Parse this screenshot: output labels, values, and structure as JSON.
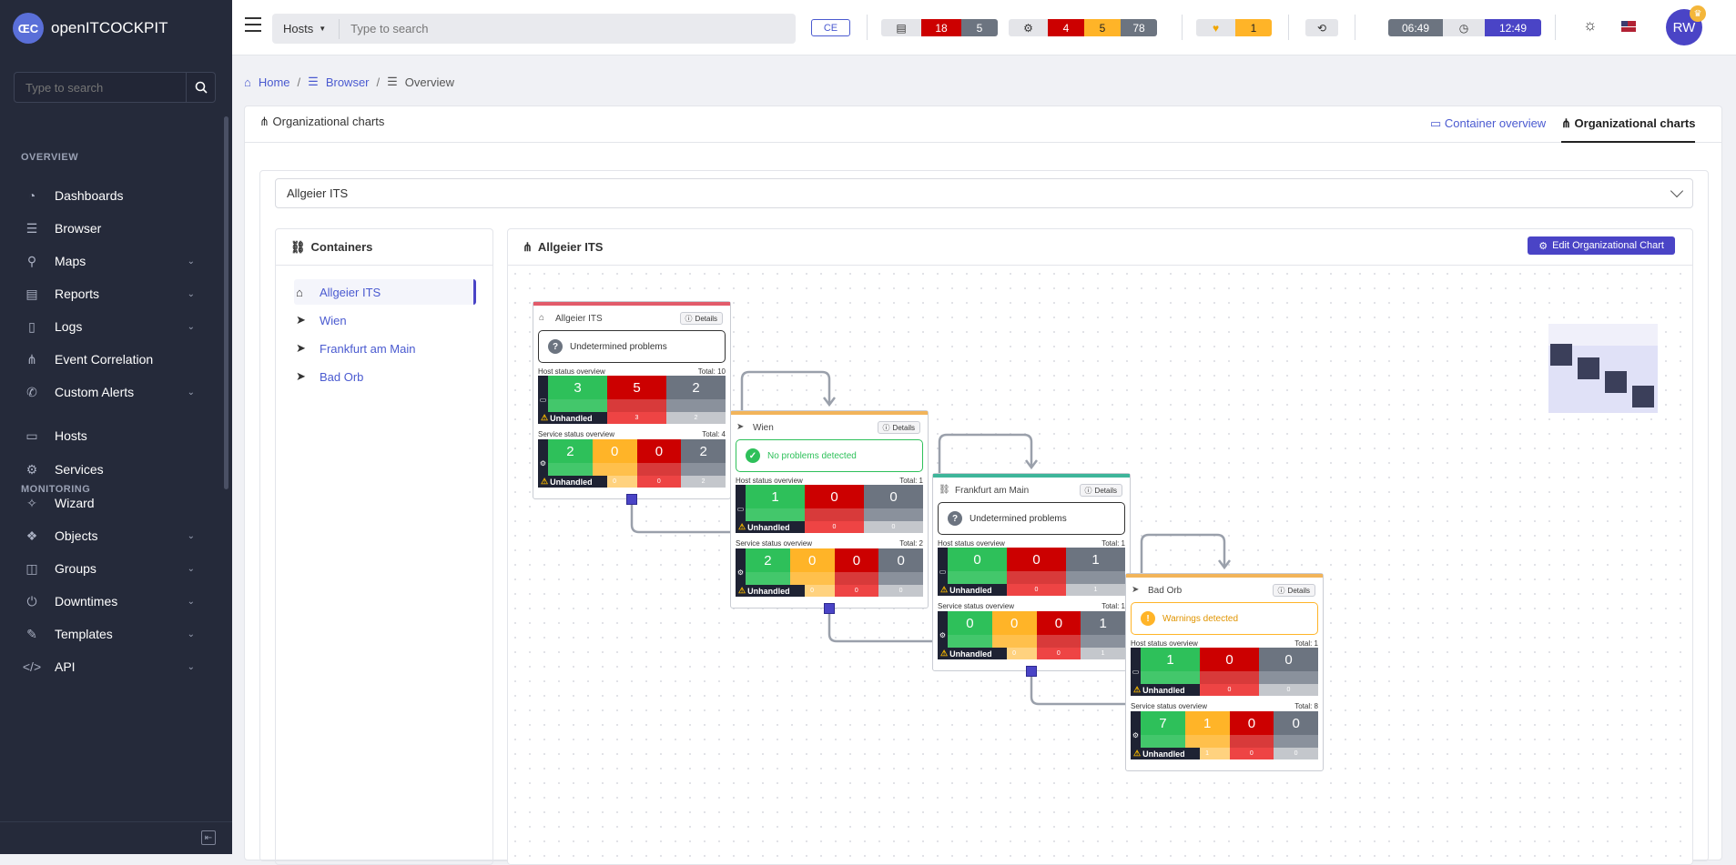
{
  "brand": {
    "name": "openITCOCKPIT",
    "logo_text": "ŒC"
  },
  "sidebar": {
    "search_placeholder": "Type to search",
    "sections": [
      {
        "label": "OVERVIEW"
      },
      {
        "label": "MONITORING"
      }
    ],
    "items": [
      {
        "label": "Dashboards",
        "icon": "dashboard-icon",
        "expandable": false
      },
      {
        "label": "Browser",
        "icon": "list-icon",
        "expandable": false
      },
      {
        "label": "Maps",
        "icon": "map-pin-icon",
        "expandable": true
      },
      {
        "label": "Reports",
        "icon": "report-icon",
        "expandable": true
      },
      {
        "label": "Logs",
        "icon": "file-icon",
        "expandable": true
      },
      {
        "label": "Event Correlation",
        "icon": "hierarchy-icon",
        "expandable": false
      },
      {
        "label": "Custom Alerts",
        "icon": "megaphone-icon",
        "expandable": true
      },
      {
        "label": "Hosts",
        "icon": "desktop-icon",
        "expandable": false
      },
      {
        "label": "Services",
        "icon": "gears-icon",
        "expandable": false
      },
      {
        "label": "Wizard",
        "icon": "wand-icon",
        "expandable": false
      },
      {
        "label": "Objects",
        "icon": "cubes-icon",
        "expandable": true
      },
      {
        "label": "Groups",
        "icon": "group-icon",
        "expandable": true
      },
      {
        "label": "Downtimes",
        "icon": "power-icon",
        "expandable": true
      },
      {
        "label": "Templates",
        "icon": "edit-icon",
        "expandable": true
      },
      {
        "label": "API",
        "icon": "code-icon",
        "expandable": true
      }
    ]
  },
  "topbar": {
    "search_scope": "Hosts",
    "search_placeholder": "Type to search",
    "edition": "CE",
    "host_counts": {
      "down": "18",
      "unreachable": "5"
    },
    "service_counts": {
      "critical": "4",
      "warning": "5",
      "unknown": "78"
    },
    "alerts": {
      "count": "1"
    },
    "time_left": "06:49",
    "time_right": "12:49",
    "user_initials": "RW",
    "colors": {
      "red": "#cc0000",
      "gray": "#6c7480",
      "orange": "#ffb428",
      "purple": "#4a44c6"
    }
  },
  "breadcrumb": {
    "home": "Home",
    "browser": "Browser",
    "current": "Overview"
  },
  "panel": {
    "title": "Organizational charts",
    "tab_container_overview": "Container overview",
    "tab_org_charts": "Organizational charts",
    "select_value": "Allgeier ITS"
  },
  "containers": {
    "title": "Containers",
    "items": [
      {
        "label": "Allgeier ITS",
        "icon": "home-icon",
        "active": true
      },
      {
        "label": "Wien",
        "icon": "location-arrow-icon",
        "active": false
      },
      {
        "label": "Frankfurt am Main",
        "icon": "location-arrow-icon",
        "active": false
      },
      {
        "label": "Bad Orb",
        "icon": "location-arrow-icon",
        "active": false
      }
    ]
  },
  "chart": {
    "title": "Allgeier ITS",
    "edit_button": "Edit Organizational Chart",
    "nodes": [
      {
        "name": "Allgeier ITS",
        "icon": "home-icon",
        "details": "Details",
        "status": "Undetermined problems",
        "status_kind": "undetermined",
        "accent": "#e25b6a",
        "host_label": "Host status overview",
        "host_total": "Total: 10",
        "host": [
          {
            "v": "3",
            "u": "",
            "c": "up"
          },
          {
            "v": "5",
            "u": "3",
            "c": "down"
          },
          {
            "v": "2",
            "u": "2",
            "c": "unreach"
          }
        ],
        "svc_label": "Service status overview",
        "svc_total": "Total: 4",
        "svc": [
          {
            "v": "2",
            "u": "",
            "c": "ok"
          },
          {
            "v": "0",
            "u": "0",
            "c": "warn"
          },
          {
            "v": "0",
            "u": "0",
            "c": "crit"
          },
          {
            "v": "2",
            "u": "2",
            "c": "unk"
          }
        ],
        "unhandled": "Unhandled"
      },
      {
        "name": "Wien",
        "icon": "location-arrow-icon",
        "details": "Details",
        "status": "No problems detected",
        "status_kind": "ok",
        "accent": "#f2b45a",
        "host_label": "Host status overview",
        "host_total": "Total: 1",
        "host": [
          {
            "v": "1",
            "u": "",
            "c": "up"
          },
          {
            "v": "0",
            "u": "0",
            "c": "down"
          },
          {
            "v": "0",
            "u": "0",
            "c": "unreach"
          }
        ],
        "svc_label": "Service status overview",
        "svc_total": "Total: 2",
        "svc": [
          {
            "v": "2",
            "u": "",
            "c": "ok"
          },
          {
            "v": "0",
            "u": "0",
            "c": "warn"
          },
          {
            "v": "0",
            "u": "0",
            "c": "crit"
          },
          {
            "v": "0",
            "u": "0",
            "c": "unk"
          }
        ],
        "unhandled": "Unhandled"
      },
      {
        "name": "Frankfurt am Main",
        "icon": "link-icon",
        "details": "Details",
        "status": "Undetermined problems",
        "status_kind": "undetermined",
        "accent": "#3eb59a",
        "host_label": "Host status overview",
        "host_total": "Total: 1",
        "host": [
          {
            "v": "0",
            "u": "",
            "c": "up"
          },
          {
            "v": "0",
            "u": "0",
            "c": "down"
          },
          {
            "v": "1",
            "u": "1",
            "c": "unreach"
          }
        ],
        "svc_label": "Service status overview",
        "svc_total": "Total: 1",
        "svc": [
          {
            "v": "0",
            "u": "",
            "c": "ok"
          },
          {
            "v": "0",
            "u": "0",
            "c": "warn"
          },
          {
            "v": "0",
            "u": "0",
            "c": "crit"
          },
          {
            "v": "1",
            "u": "1",
            "c": "unk"
          }
        ],
        "unhandled": "Unhandled"
      },
      {
        "name": "Bad Orb",
        "icon": "location-arrow-icon",
        "details": "Details",
        "status": "Warnings detected",
        "status_kind": "warning",
        "accent": "#f2b45a",
        "host_label": "Host status overview",
        "host_total": "Total: 1",
        "host": [
          {
            "v": "1",
            "u": "",
            "c": "up"
          },
          {
            "v": "0",
            "u": "0",
            "c": "down"
          },
          {
            "v": "0",
            "u": "0",
            "c": "unreach"
          }
        ],
        "svc_label": "Service status overview",
        "svc_total": "Total: 8",
        "svc": [
          {
            "v": "7",
            "u": "",
            "c": "ok"
          },
          {
            "v": "1",
            "u": "1",
            "c": "warn"
          },
          {
            "v": "0",
            "u": "0",
            "c": "crit"
          },
          {
            "v": "0",
            "u": "0",
            "c": "unk"
          }
        ],
        "unhandled": "Unhandled"
      }
    ]
  }
}
